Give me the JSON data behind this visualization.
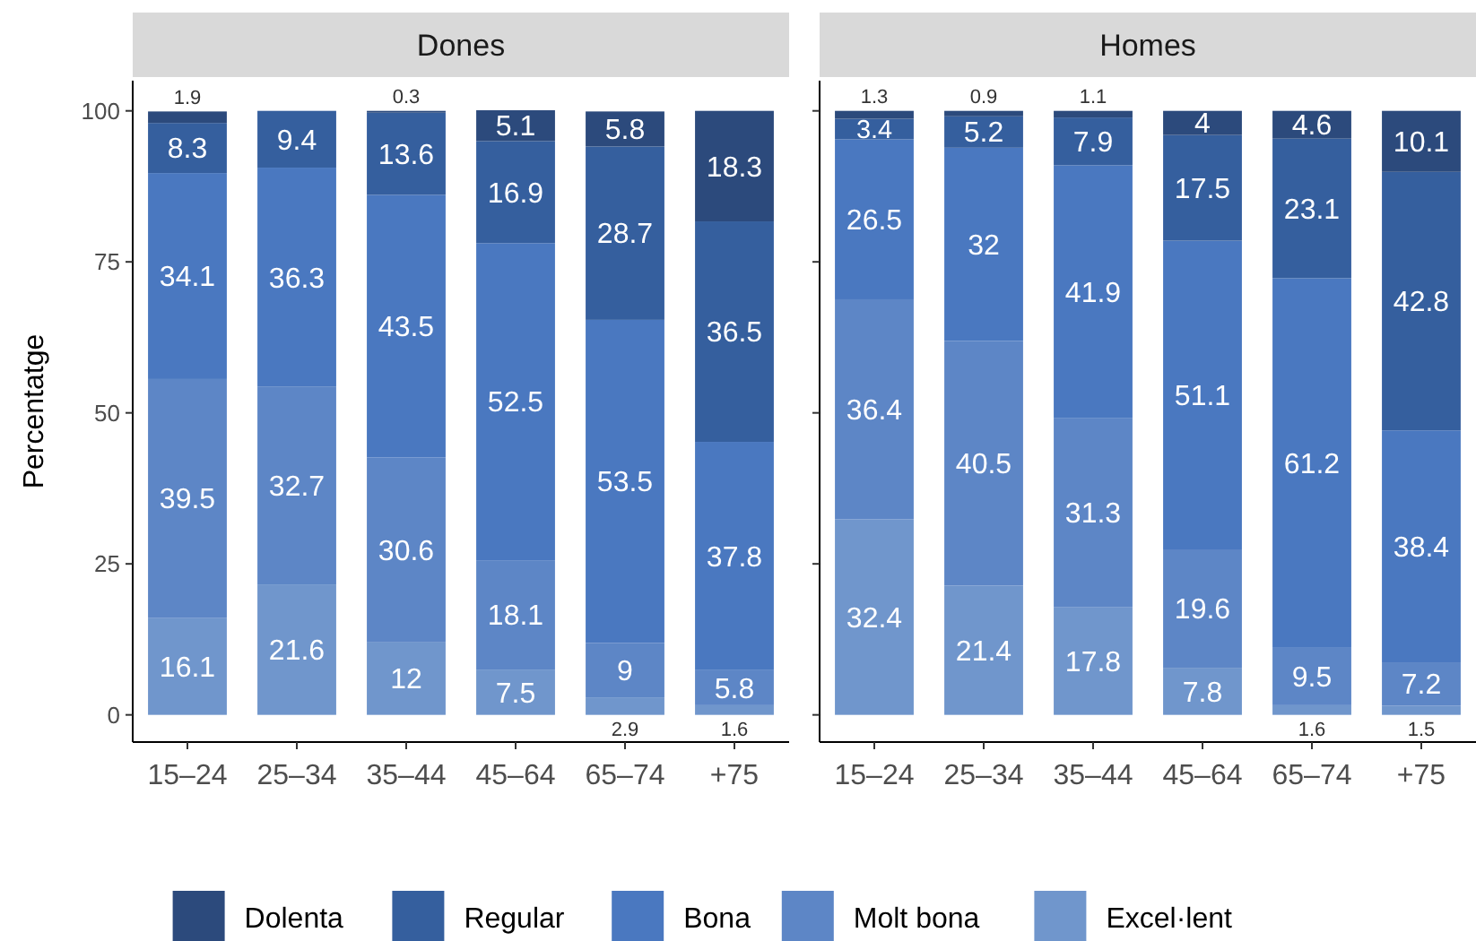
{
  "chart_data": [
    {
      "type": "bar",
      "title": "Dones",
      "ylabel": "Percentatge",
      "stacked": true,
      "data_labels": true,
      "legend": "bottom",
      "grid": false,
      "categories": [
        "15–24",
        "25–34",
        "35–44",
        "45–64",
        "65–74",
        "+75"
      ],
      "ylim": [
        -4.5,
        105
      ],
      "yticks": [
        0,
        25,
        50,
        75,
        100
      ],
      "series": [
        {
          "name": "Excel·lent",
          "color": "#7096cc",
          "values": [
            16.1,
            21.6,
            12,
            7.5,
            2.9,
            1.6
          ]
        },
        {
          "name": "Molt bona",
          "color": "#5d86c6",
          "values": [
            39.5,
            32.7,
            30.6,
            18.1,
            9,
            5.8
          ]
        },
        {
          "name": "Bona",
          "color": "#4a78c0",
          "values": [
            34.1,
            36.3,
            43.5,
            52.5,
            53.5,
            37.8
          ]
        },
        {
          "name": "Regular",
          "color": "#355f9e",
          "values": [
            8.3,
            9.4,
            13.6,
            16.9,
            28.7,
            36.5
          ]
        },
        {
          "name": "Dolenta",
          "color": "#2c4a7c",
          "values": [
            1.9,
            null,
            0.3,
            5.1,
            5.8,
            18.3
          ]
        }
      ]
    },
    {
      "type": "bar",
      "title": "Homes",
      "stacked": true,
      "data_labels": true,
      "grid": false,
      "tick_labels": "x",
      "categories": [
        "15–24",
        "25–34",
        "35–44",
        "45–64",
        "65–74",
        "+75"
      ],
      "ylim": [
        -4.5,
        105
      ],
      "yticks": [
        0,
        25,
        50,
        75,
        100
      ],
      "series": [
        {
          "color": "#7096cc",
          "values": [
            32.4,
            21.4,
            17.8,
            7.8,
            1.6,
            1.5
          ]
        },
        {
          "color": "#5d86c6",
          "values": [
            36.4,
            40.5,
            31.3,
            19.6,
            9.5,
            7.2
          ]
        },
        {
          "color": "#4a78c0",
          "values": [
            26.5,
            32,
            41.9,
            51.1,
            61.2,
            38.4
          ]
        },
        {
          "color": "#355f9e",
          "values": [
            3.4,
            5.2,
            7.9,
            17.5,
            23.1,
            42.8
          ]
        },
        {
          "color": "#2c4a7c",
          "values": [
            1.3,
            0.9,
            1.1,
            4,
            4.6,
            10.1
          ]
        }
      ]
    }
  ]
}
